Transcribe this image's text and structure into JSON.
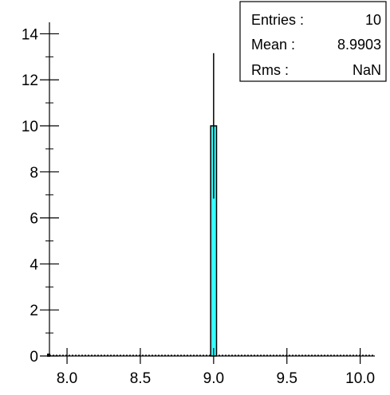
{
  "chart_data": {
    "type": "bar",
    "title": "",
    "xlabel": "",
    "ylabel": "",
    "xlim": [
      7.88,
      10.1
    ],
    "ylim": [
      0,
      14.5
    ],
    "x_ticks": [
      "8.0",
      "8.5",
      "9.0",
      "9.5",
      "10.0"
    ],
    "x_tick_values": [
      8.0,
      8.5,
      9.0,
      9.5,
      10.0
    ],
    "y_ticks": [
      "0",
      "2",
      "4",
      "6",
      "8",
      "10",
      "12",
      "14"
    ],
    "y_tick_values": [
      0,
      2,
      4,
      6,
      8,
      10,
      12,
      14
    ],
    "bins": [
      {
        "x_low": 8.98,
        "x_high": 9.02,
        "value": 10,
        "error": 3.16
      }
    ],
    "fill_color": "#33ffff",
    "line_color": "#000000"
  },
  "stats_box": {
    "entries_label": "Entries :",
    "entries_value": "10",
    "mean_label": "Mean :",
    "mean_value": "8.9903",
    "rms_label": "Rms :",
    "rms_value": "NaN"
  }
}
